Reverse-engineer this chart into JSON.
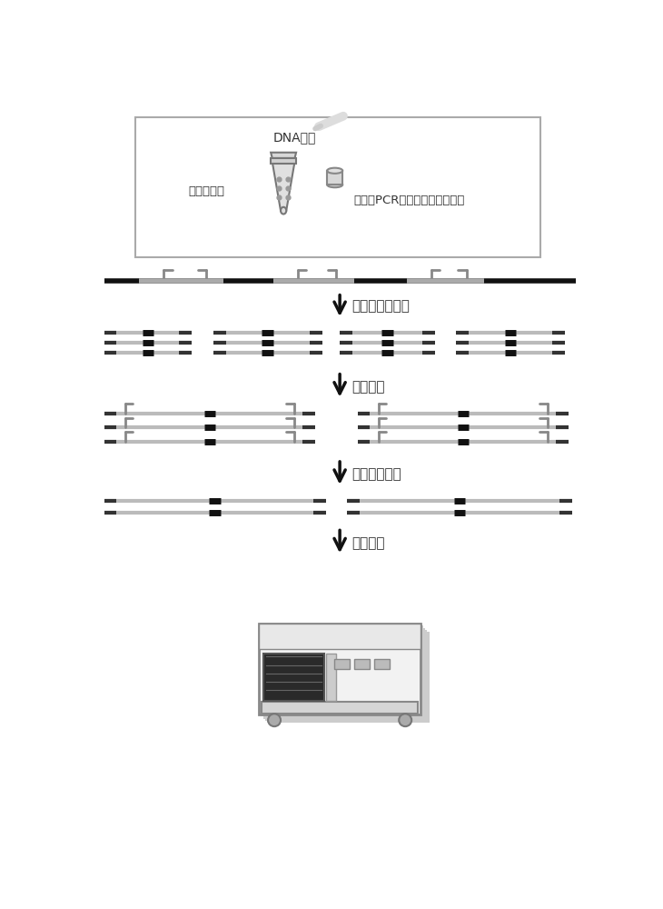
{
  "bg_color": "#ffffff",
  "text_color": "#333333",
  "labels": {
    "dna": "DNA模板",
    "primer": "引物混合物",
    "pcr1": "第一轮PCR扩增，目标片段富集",
    "mix": "一轮扩增后混合",
    "round2": "二轮扩增",
    "lib": "获得测序文库",
    "seq": "上机测序"
  },
  "figsize": [
    7.3,
    10.0
  ],
  "dpi": 100
}
